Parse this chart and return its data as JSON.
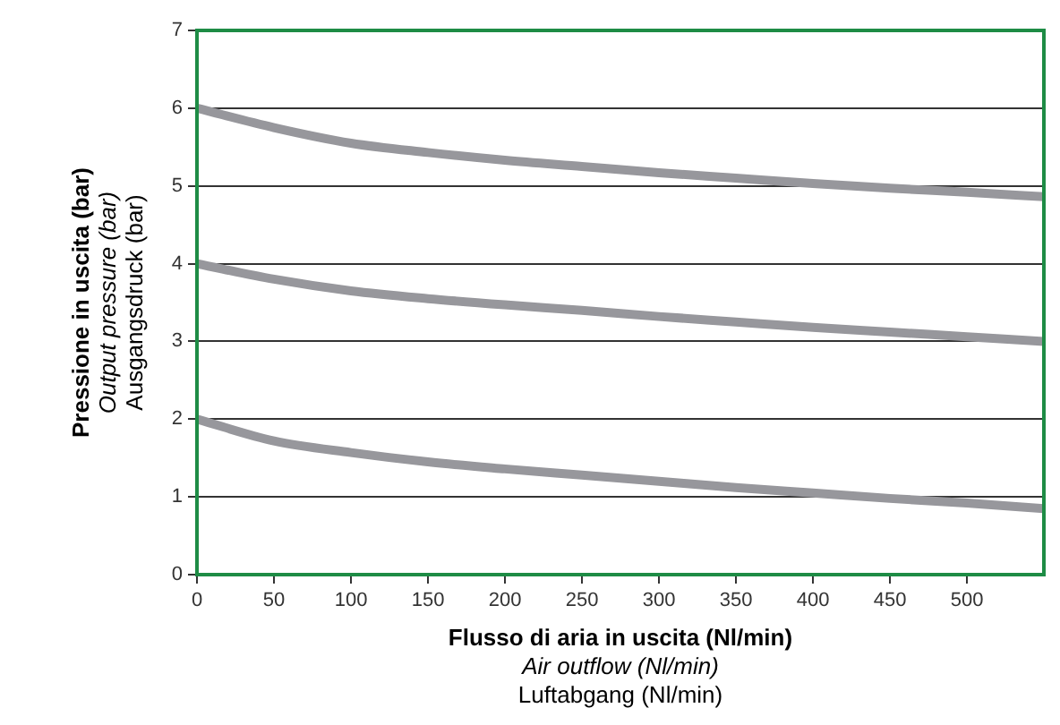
{
  "chart_data": {
    "type": "line",
    "xlabel": "Flusso di aria in uscita (Nl/min)\nAir outflow (Nl/min)\nLuftabgang (Nl/min)",
    "ylabel": "Pressione in uscita (bar)\nOutput pressure (bar)\nAusgangsdruck (bar)",
    "x": [
      0,
      50,
      100,
      150,
      200,
      250,
      300,
      350,
      400,
      450,
      500,
      550
    ],
    "series": [
      {
        "color": "#97979c",
        "values": [
          6,
          5.75,
          5.55,
          5.43,
          5.33,
          5.25,
          5.17,
          5.1,
          5.03,
          4.97,
          4.92,
          4.86
        ]
      },
      {
        "color": "#97979c",
        "values": [
          4,
          3.8,
          3.65,
          3.55,
          3.47,
          3.4,
          3.32,
          3.25,
          3.18,
          3.12,
          3.06,
          3.0
        ]
      },
      {
        "color": "#97979c",
        "values": [
          2,
          1.72,
          1.57,
          1.45,
          1.36,
          1.28,
          1.2,
          1.12,
          1.05,
          0.98,
          0.92,
          0.85
        ]
      }
    ],
    "xlim": [
      0,
      550
    ],
    "xticks": [
      0,
      50,
      100,
      150,
      200,
      250,
      300,
      350,
      400,
      450,
      500
    ],
    "ylim": [
      0,
      7
    ],
    "yticks": [
      0,
      1,
      2,
      3,
      4,
      5,
      6,
      7
    ],
    "grid": "y",
    "legend": false,
    "marker": "none",
    "line_style": "solid"
  }
}
